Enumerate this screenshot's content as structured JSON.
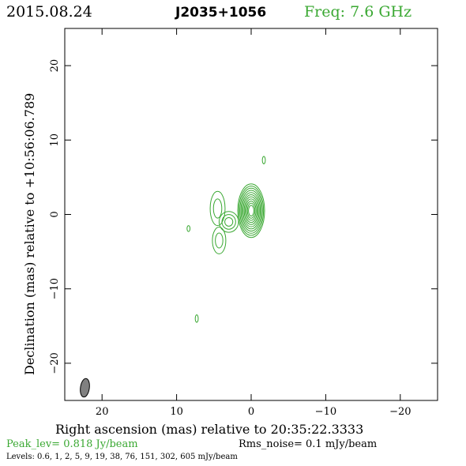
{
  "header": {
    "date": "2015.08.24",
    "source": "J2035+1056",
    "frequency": "Freq: 7.6 GHz"
  },
  "footer": {
    "peak": "Peak_lev=  0.818 Jy/beam",
    "rms": "Rms_noise=  0.1 mJy/beam",
    "levels": "Levels: 0.6,    1,    2,    5,    9,   19,    38,   76,  151,  302,  605 mJy/beam"
  },
  "colors": {
    "contour": "#3aa832",
    "axes": "#000000",
    "beam": "#808080"
  },
  "chart_data": {
    "type": "contour",
    "xlabel": "Right ascension (mas) relative to 20:35:22.3333",
    "ylabel": "Declination (mas) relative to +10:56:06.789",
    "xlim": [
      25,
      -25
    ],
    "ylim": [
      -25,
      25
    ],
    "xticks": [
      20,
      10,
      0,
      -10,
      -20
    ],
    "yticks": [
      20,
      10,
      0,
      -10,
      -20
    ],
    "x_tick_labels": [
      "20",
      "10",
      "0",
      "−10",
      "−20"
    ],
    "y_tick_labels": [
      "20",
      "10",
      "0",
      "−10",
      "−20"
    ],
    "contour_levels_mjy": [
      0.6,
      1,
      2,
      5,
      9,
      19,
      38,
      76,
      151,
      302,
      605
    ],
    "peak_jy_per_beam": 0.818,
    "rms_noise_mjy_per_beam": 0.1,
    "components": [
      {
        "x": 0.0,
        "y": 0.5,
        "sx": 1.8,
        "sy": 3.6,
        "n_contours": 11
      },
      {
        "x": 3.0,
        "y": -1.0,
        "sx": 1.3,
        "sy": 1.4,
        "n_contours": 3
      },
      {
        "x": 4.5,
        "y": 0.8,
        "sx": 1.0,
        "sy": 2.3,
        "n_contours": 2
      },
      {
        "x": 4.3,
        "y": -3.5,
        "sx": 0.9,
        "sy": 1.8,
        "n_contours": 2
      },
      {
        "x": -1.7,
        "y": 7.3,
        "sx": 0.2,
        "sy": 0.5,
        "n_contours": 1
      },
      {
        "x": 8.4,
        "y": -1.9,
        "sx": 0.2,
        "sy": 0.4,
        "n_contours": 1
      },
      {
        "x": 7.3,
        "y": -14.0,
        "sx": 0.2,
        "sy": 0.5,
        "n_contours": 1
      }
    ],
    "beam": {
      "x": 22.3,
      "y": -23.3,
      "major": 2.5,
      "minor": 1.2
    }
  }
}
